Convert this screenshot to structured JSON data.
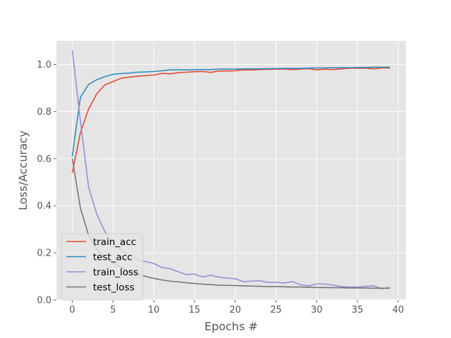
{
  "chart_data": {
    "type": "line",
    "title": "",
    "xlabel": "Epochs #",
    "ylabel": "Loss/Accuracy",
    "xlim": [
      -1.95,
      40.95
    ],
    "ylim": [
      0,
      1.1
    ],
    "x_ticks": [
      0,
      5,
      10,
      15,
      20,
      25,
      30,
      35,
      40
    ],
    "y_ticks": [
      0.0,
      0.2,
      0.4,
      0.6,
      0.8,
      1.0
    ],
    "x_tick_labels": [
      "0",
      "5",
      "10",
      "15",
      "20",
      "25",
      "30",
      "35",
      "40"
    ],
    "y_tick_labels": [
      "0.0",
      "0.2",
      "0.4",
      "0.6",
      "0.8",
      "1.0"
    ],
    "grid": true,
    "style": "ggplot",
    "legend_position": "lower-left",
    "x": [
      0,
      1,
      2,
      3,
      4,
      5,
      6,
      7,
      8,
      9,
      10,
      11,
      12,
      13,
      14,
      15,
      16,
      17,
      18,
      19,
      20,
      21,
      22,
      23,
      24,
      25,
      26,
      27,
      28,
      29,
      30,
      31,
      32,
      33,
      34,
      35,
      36,
      37,
      38,
      39
    ],
    "series": [
      {
        "name": "train_acc",
        "color": "#E24A33",
        "values": [
          0.54,
          0.71,
          0.81,
          0.875,
          0.913,
          0.927,
          0.941,
          0.946,
          0.95,
          0.952,
          0.955,
          0.962,
          0.96,
          0.965,
          0.967,
          0.969,
          0.97,
          0.966,
          0.972,
          0.972,
          0.973,
          0.977,
          0.976,
          0.978,
          0.979,
          0.98,
          0.98,
          0.978,
          0.98,
          0.982,
          0.977,
          0.98,
          0.978,
          0.981,
          0.984,
          0.984,
          0.984,
          0.981,
          0.985,
          0.985
        ]
      },
      {
        "name": "test_acc",
        "color": "#348ABD",
        "values": [
          0.61,
          0.86,
          0.915,
          0.935,
          0.948,
          0.958,
          0.961,
          0.963,
          0.967,
          0.968,
          0.97,
          0.973,
          0.977,
          0.977,
          0.977,
          0.977,
          0.978,
          0.978,
          0.98,
          0.98,
          0.98,
          0.981,
          0.981,
          0.981,
          0.982,
          0.982,
          0.983,
          0.983,
          0.983,
          0.984,
          0.985,
          0.985,
          0.986,
          0.986,
          0.986,
          0.987,
          0.987,
          0.988,
          0.988,
          0.988
        ]
      },
      {
        "name": "train_loss",
        "color": "#988ED5",
        "values": [
          1.06,
          0.76,
          0.48,
          0.365,
          0.29,
          0.245,
          0.21,
          0.19,
          0.17,
          0.163,
          0.155,
          0.138,
          0.133,
          0.12,
          0.108,
          0.11,
          0.098,
          0.105,
          0.097,
          0.093,
          0.09,
          0.078,
          0.08,
          0.082,
          0.075,
          0.075,
          0.072,
          0.078,
          0.065,
          0.06,
          0.068,
          0.068,
          0.063,
          0.057,
          0.055,
          0.055,
          0.058,
          0.06,
          0.048,
          0.053
        ]
      },
      {
        "name": "test_loss",
        "color": "#777777",
        "values": [
          0.6,
          0.39,
          0.275,
          0.215,
          0.18,
          0.157,
          0.138,
          0.122,
          0.11,
          0.1,
          0.092,
          0.085,
          0.08,
          0.077,
          0.073,
          0.07,
          0.067,
          0.065,
          0.063,
          0.062,
          0.061,
          0.06,
          0.059,
          0.058,
          0.057,
          0.057,
          0.056,
          0.055,
          0.055,
          0.054,
          0.053,
          0.053,
          0.052,
          0.052,
          0.051,
          0.051,
          0.051,
          0.05,
          0.05,
          0.05
        ]
      }
    ]
  }
}
